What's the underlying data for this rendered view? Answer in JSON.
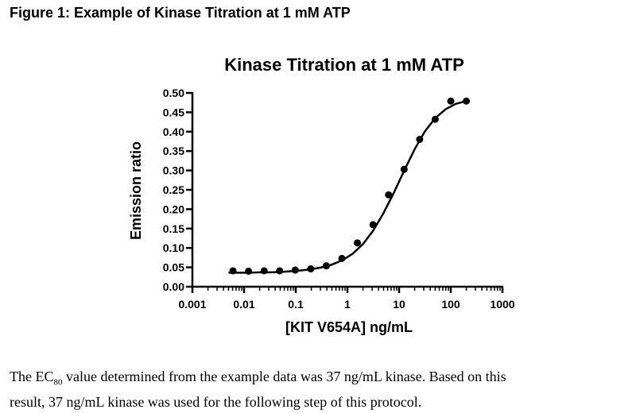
{
  "figure_heading": "Figure 1: Example of Kinase Titration at 1 mM ATP",
  "chart_data": {
    "type": "scatter",
    "title": "Kinase Titration at 1 mM ATP",
    "xlabel": "[KIT V654A] ng/mL",
    "ylabel": "Emission ratio",
    "xscale": "log",
    "xlim": [
      0.001,
      1000
    ],
    "ylim": [
      0,
      0.5
    ],
    "xticks": [
      "0.001",
      "0.01",
      "0.1",
      "1",
      "10",
      "100",
      "1000"
    ],
    "yticks": [
      "0.00",
      "0.05",
      "0.10",
      "0.15",
      "0.20",
      "0.25",
      "0.30",
      "0.35",
      "0.40",
      "0.45",
      "0.50"
    ],
    "grid": false,
    "legend": "none",
    "series": [
      {
        "x": [
          0.0061,
          0.0122,
          0.0244,
          0.0488,
          0.0977,
          0.195,
          0.391,
          0.781,
          1.56,
          3.13,
          6.25,
          12.5,
          25,
          50,
          100,
          200
        ],
        "y": [
          0.041,
          0.04,
          0.041,
          0.041,
          0.043,
          0.046,
          0.054,
          0.073,
          0.113,
          0.16,
          0.237,
          0.303,
          0.38,
          0.432,
          0.479,
          0.479
        ],
        "color": "#000000",
        "fit": "sigmoidal dose-response",
        "fit_curve": {
          "x": [
            0.005,
            0.0079,
            0.0126,
            0.02,
            0.0316,
            0.05,
            0.0794,
            0.126,
            0.2,
            0.316,
            0.5,
            0.794,
            1.26,
            2,
            3.16,
            5,
            7.94,
            12.6,
            20,
            31.6,
            50,
            79.4,
            126,
            200
          ],
          "y": [
            0.036,
            0.036,
            0.036,
            0.037,
            0.037,
            0.038,
            0.04,
            0.042,
            0.045,
            0.05,
            0.057,
            0.068,
            0.085,
            0.11,
            0.145,
            0.19,
            0.243,
            0.3,
            0.355,
            0.401,
            0.435,
            0.458,
            0.472,
            0.479
          ]
        }
      }
    ]
  },
  "caption": {
    "line1_before": "The EC",
    "subscript": "80",
    "line1_after": " value determined from the example data was 37 ng/mL kinase.  Based on this",
    "line2": "result, 37 ng/mL kinase was used for the following step of this protocol."
  }
}
